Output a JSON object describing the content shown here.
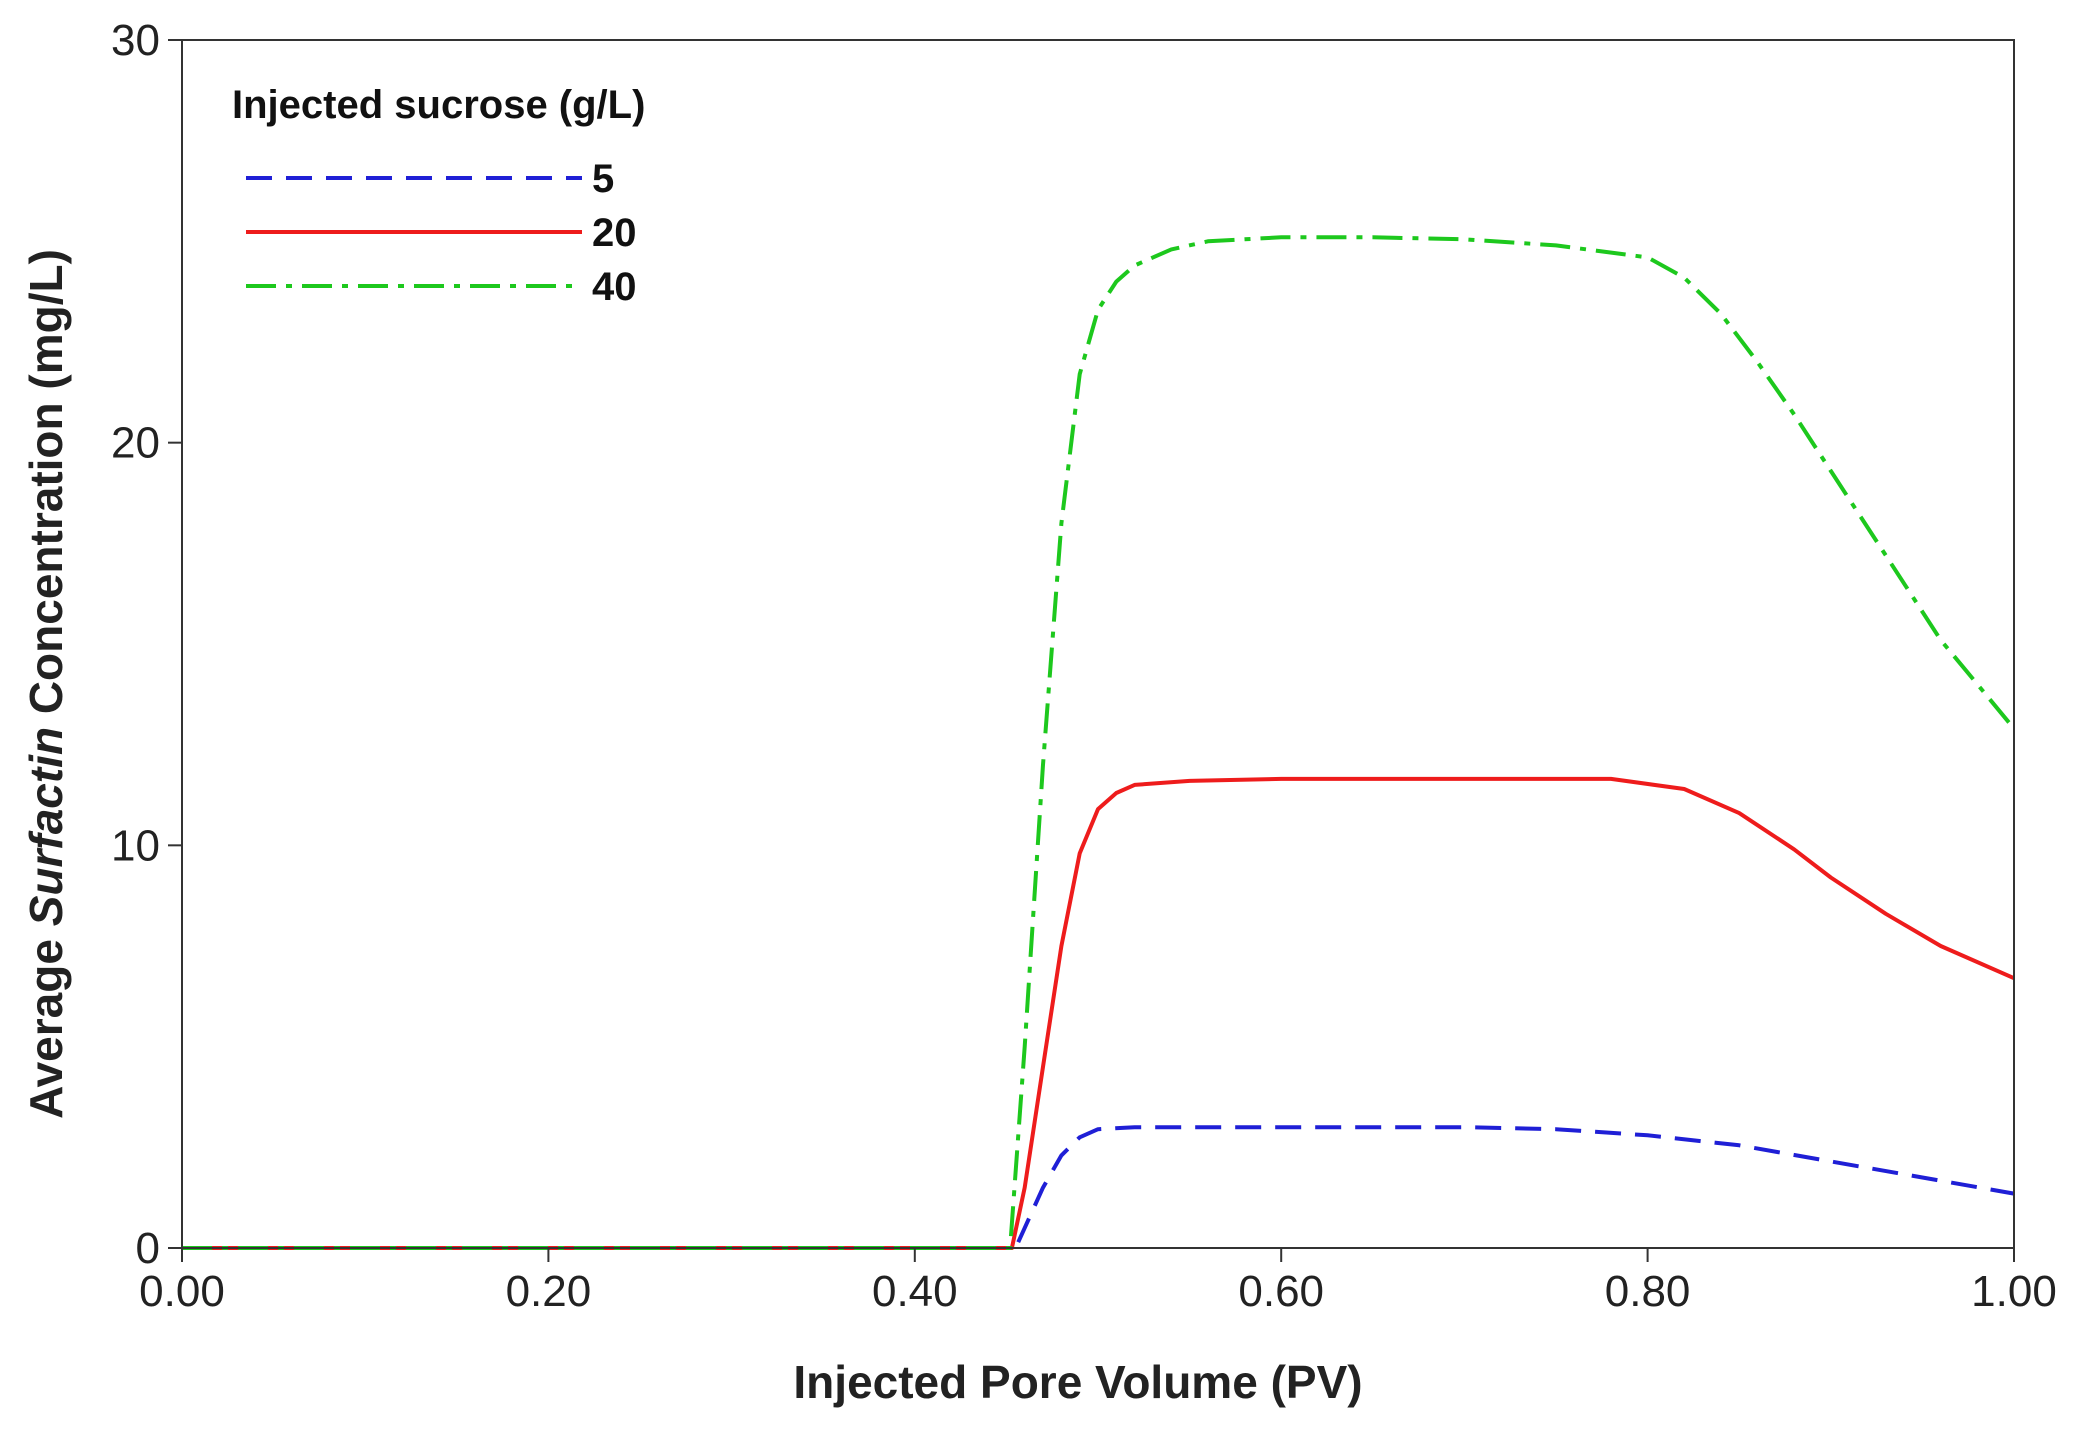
{
  "chart_data": {
    "type": "line",
    "title": "",
    "xlabel": "Injected Pore Volume (PV)",
    "ylabel_prefix": "Average ",
    "ylabel_italic": "Surfactin",
    "ylabel_suffix": " Concentration (mg/L)",
    "xlim": [
      0,
      1
    ],
    "ylim": [
      0,
      30
    ],
    "xticks": [
      0,
      0.2,
      0.4,
      0.6,
      0.8,
      1.0
    ],
    "xtick_labels": [
      "0.00",
      "0.20",
      "0.40",
      "0.60",
      "0.80",
      "1.00"
    ],
    "yticks": [
      0,
      10,
      20,
      30
    ],
    "ytick_labels": [
      "0",
      "10",
      "20",
      "30"
    ],
    "grid": false,
    "legend": {
      "title": "Injected sucrose (g/L)",
      "position": "top-left"
    },
    "series": [
      {
        "name": "5",
        "color": "#1f1fd6",
        "style": "dashed",
        "x": [
          0.0,
          0.455,
          0.46,
          0.47,
          0.48,
          0.49,
          0.5,
          0.52,
          0.55,
          0.6,
          0.7,
          0.75,
          0.8,
          0.85,
          0.9,
          0.95,
          1.0
        ],
        "y": [
          0.0,
          0.0,
          0.5,
          1.5,
          2.3,
          2.75,
          2.95,
          3.0,
          3.0,
          3.0,
          3.0,
          2.95,
          2.8,
          2.55,
          2.15,
          1.75,
          1.35
        ]
      },
      {
        "name": "20",
        "color": "#ee1c1c",
        "style": "solid",
        "x": [
          0.0,
          0.453,
          0.46,
          0.47,
          0.48,
          0.49,
          0.5,
          0.51,
          0.52,
          0.55,
          0.6,
          0.7,
          0.78,
          0.82,
          0.85,
          0.88,
          0.9,
          0.93,
          0.96,
          1.0
        ],
        "y": [
          0.0,
          0.0,
          1.5,
          4.5,
          7.5,
          9.8,
          10.9,
          11.3,
          11.5,
          11.6,
          11.65,
          11.65,
          11.65,
          11.4,
          10.8,
          9.9,
          9.2,
          8.3,
          7.5,
          6.7
        ]
      },
      {
        "name": "40",
        "color": "#1dc81d",
        "style": "dashdot",
        "x": [
          0.0,
          0.452,
          0.46,
          0.47,
          0.48,
          0.49,
          0.5,
          0.51,
          0.52,
          0.54,
          0.56,
          0.6,
          0.65,
          0.7,
          0.75,
          0.8,
          0.82,
          0.84,
          0.86,
          0.88,
          0.9,
          0.93,
          0.96,
          0.98,
          1.0
        ],
        "y": [
          0.0,
          0.0,
          5.0,
          12.0,
          18.0,
          21.7,
          23.3,
          24.0,
          24.4,
          24.8,
          25.0,
          25.1,
          25.1,
          25.05,
          24.9,
          24.6,
          24.1,
          23.2,
          22.0,
          20.7,
          19.3,
          17.2,
          15.1,
          14.0,
          12.9
        ]
      }
    ]
  }
}
